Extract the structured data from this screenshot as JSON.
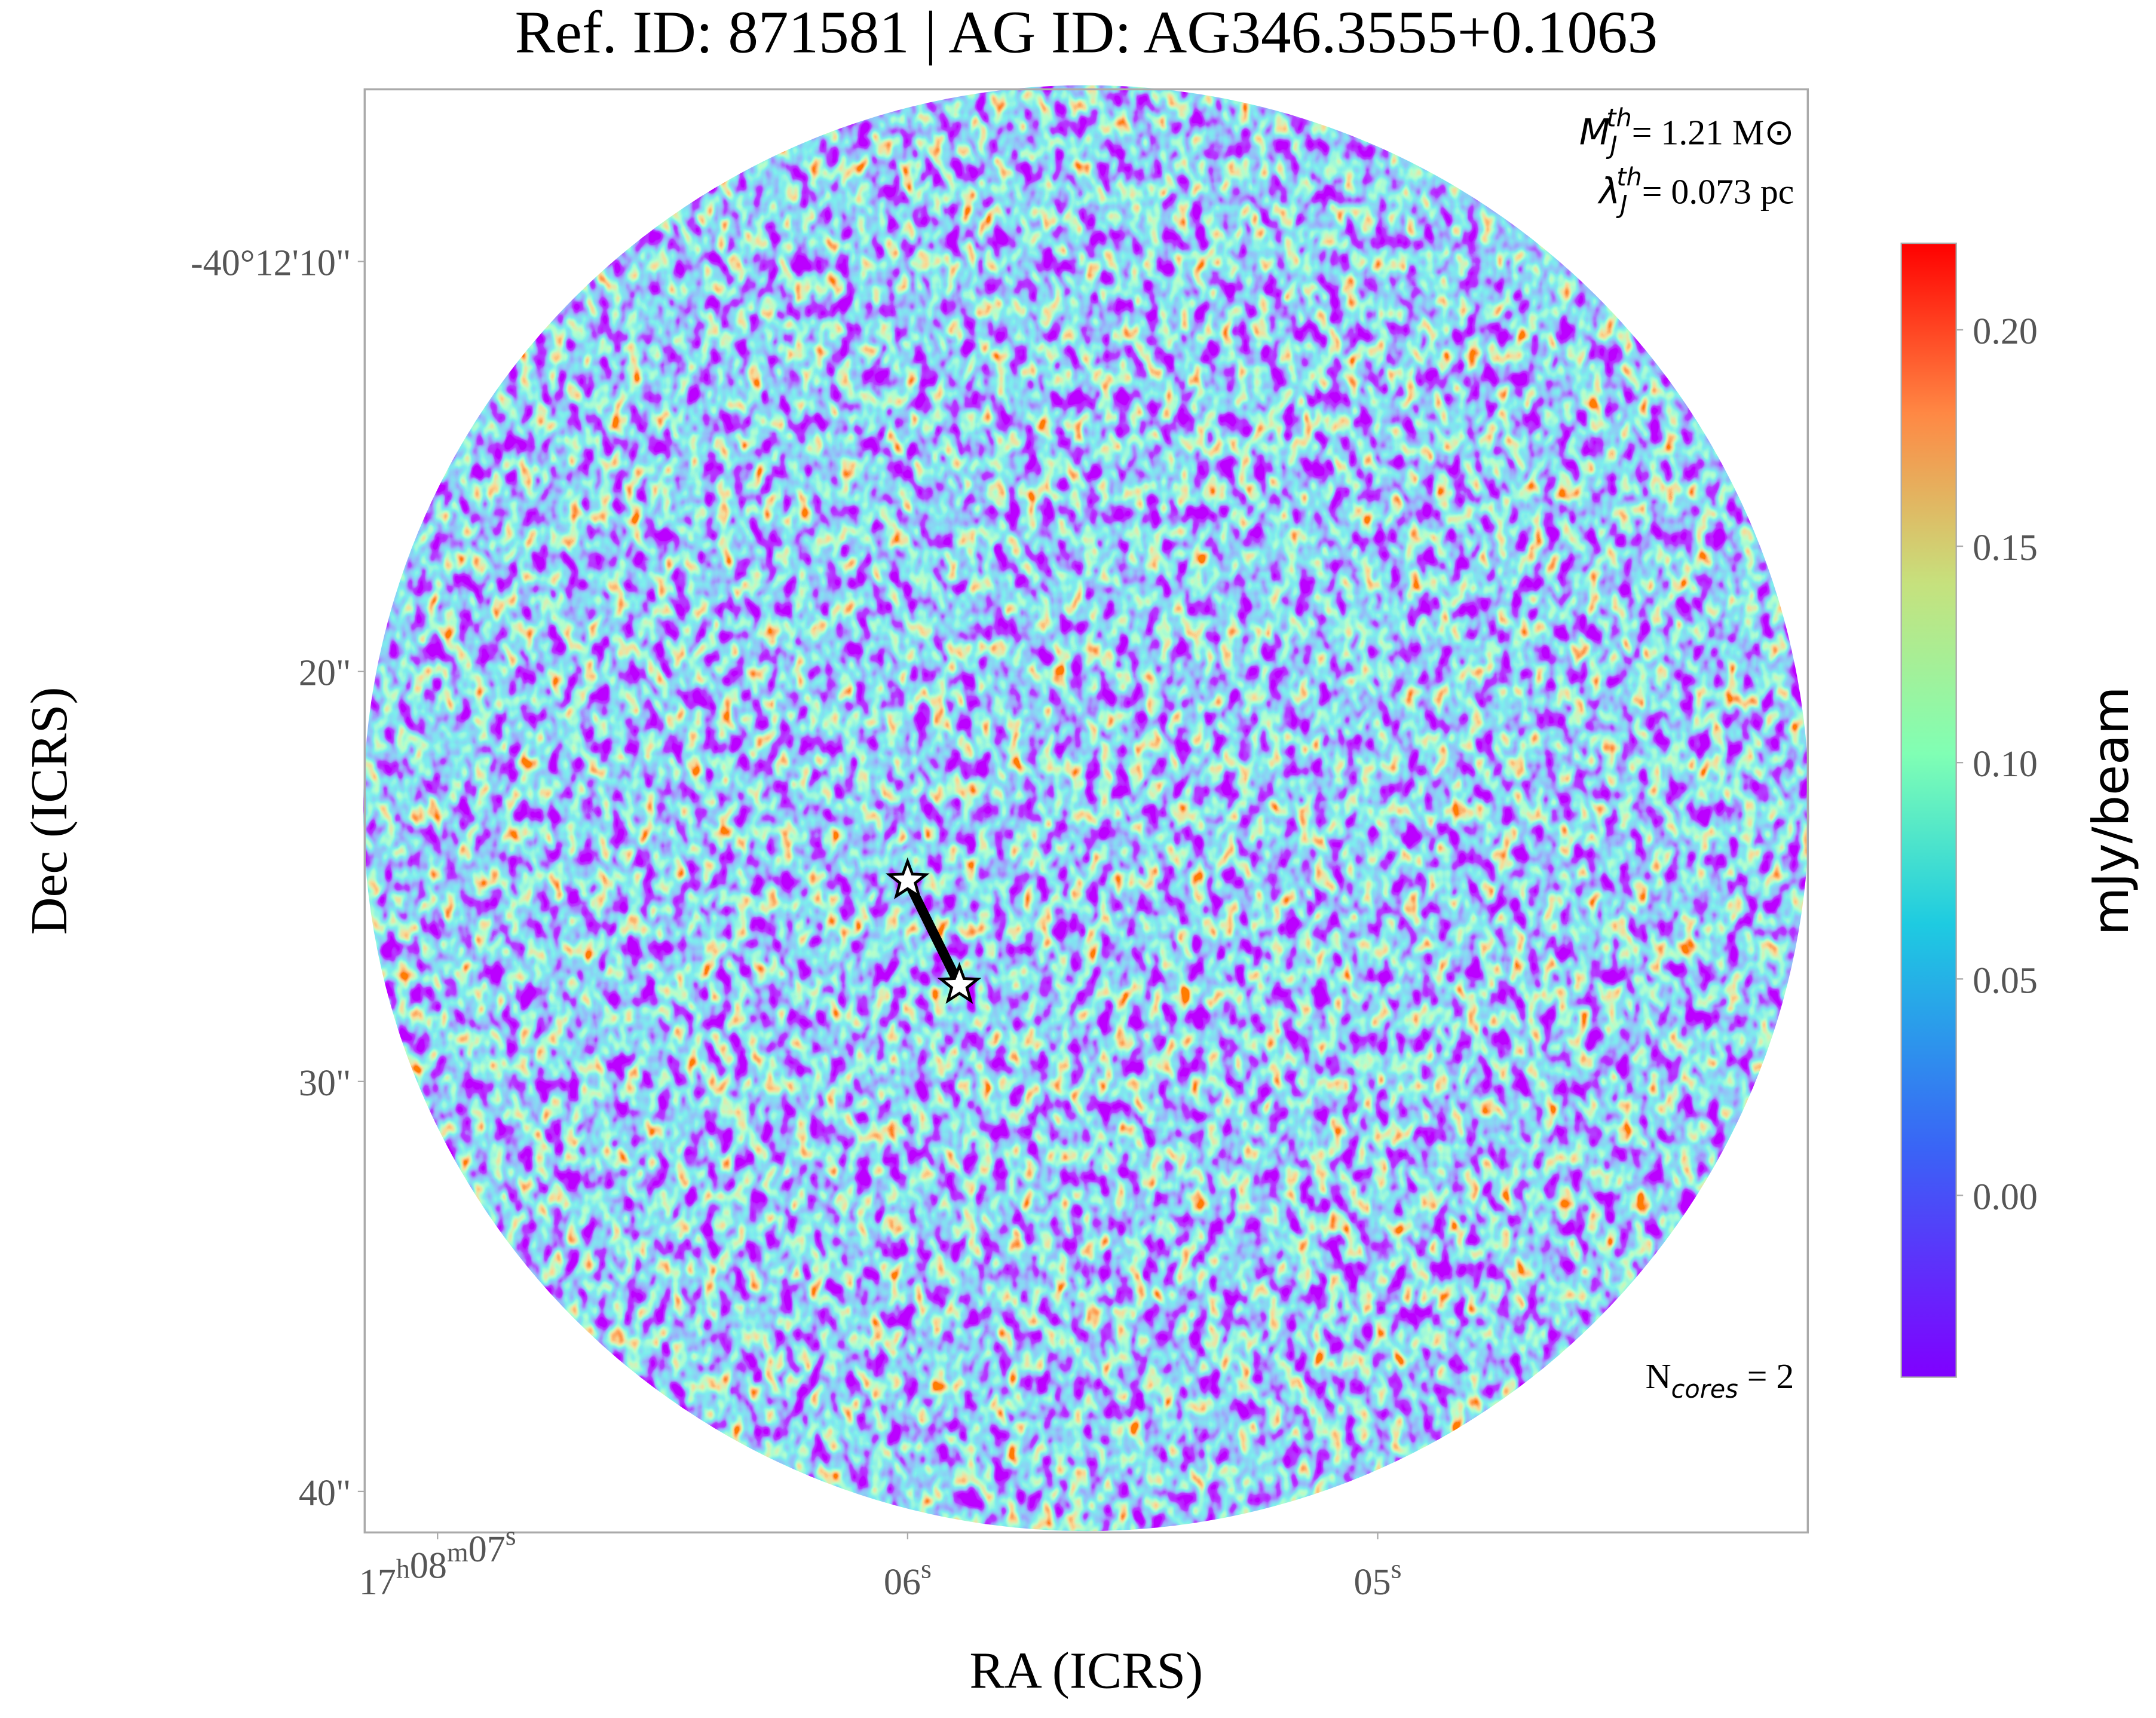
{
  "chart_data": {
    "type": "image",
    "title": "Ref. ID: 871581 | AG ID: AG346.3555+0.1063",
    "xlabel": "RA (ICRS)",
    "ylabel": "Dec (ICRS)",
    "xlim": [
      7.155,
      4.085
    ],
    "xticks": [
      {
        "value": 7,
        "label": "17h08m07s"
      },
      {
        "value": 6,
        "label": "06s"
      },
      {
        "value": 5,
        "label": "05s"
      }
    ],
    "ylim": [
      5.8,
      41.0
    ],
    "yticks": [
      {
        "value": 10,
        "label": "-40°12'10\""
      },
      {
        "value": 20,
        "label": "20\""
      },
      {
        "value": 30,
        "label": "30\""
      },
      {
        "value": 40,
        "label": "40\""
      }
    ],
    "colorbar": {
      "label": "mJy/beam",
      "clim": [
        -0.042,
        0.22
      ],
      "ticks": [
        {
          "value": 0,
          "label": "0.00"
        },
        {
          "value": 0.05,
          "label": "0.05"
        },
        {
          "value": 0.1,
          "label": "0.10"
        },
        {
          "value": 0.15,
          "label": "0.15"
        },
        {
          "value": 0.2,
          "label": "0.20"
        }
      ]
    },
    "cores": {
      "x": [
        6.0,
        5.89
      ],
      "y": [
        25.1,
        27.65
      ]
    },
    "annotations": {
      "mass": {
        "symbol": "M",
        "sub": "J",
        "sup": "th",
        "text": "= 1.21 M⊙"
      },
      "length": {
        "symbol": "λ",
        "sub": "J",
        "sup": "th",
        "text": "= 0.073 pc"
      },
      "ncores": {
        "symbol": "N",
        "sub": "cores",
        "text": " = 2"
      }
    }
  }
}
